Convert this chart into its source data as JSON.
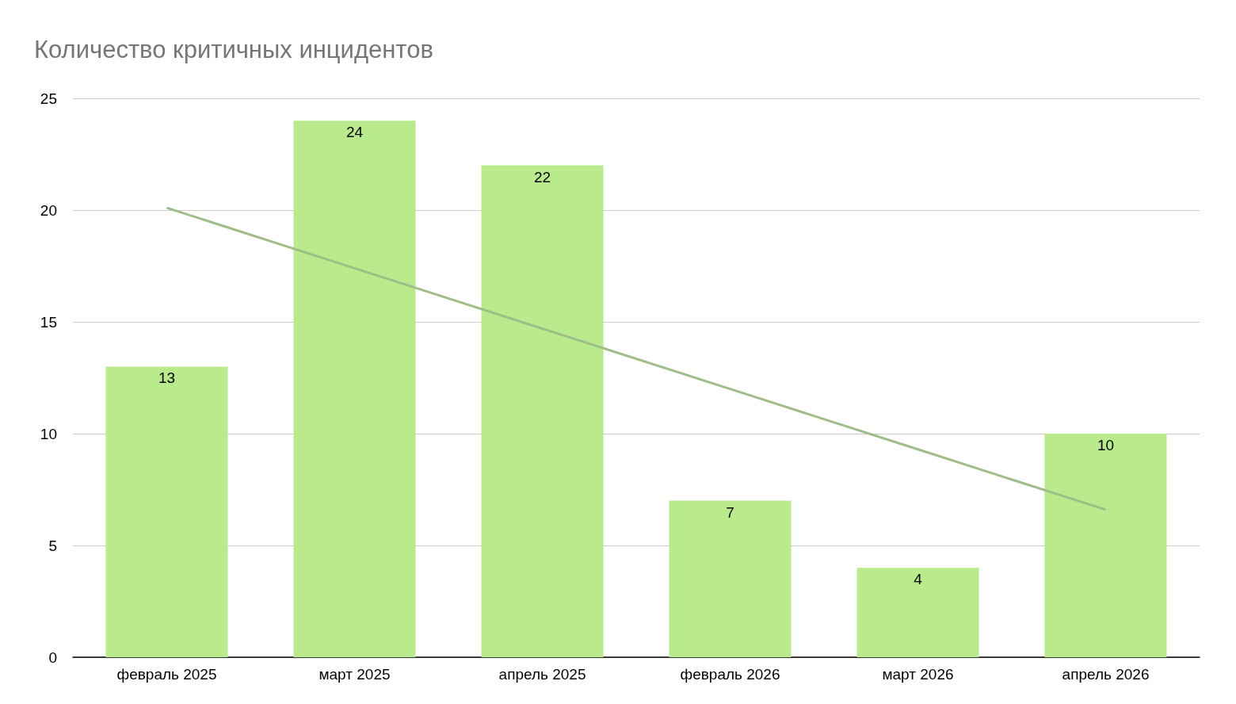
{
  "chart_data": {
    "type": "bar",
    "title": "Количество критичных инцидентов",
    "categories": [
      "февраль 2025",
      "март 2025",
      "апрель 2025",
      "февраль 2026",
      "март 2026",
      "апрель 2026"
    ],
    "series": [
      {
        "color": "#b9eb8c",
        "values": [
          13,
          24,
          22,
          7,
          4,
          10
        ],
        "value_labels": [
          "13",
          "24",
          "22",
          "7",
          "4",
          "10"
        ]
      },
      {
        "type": "line",
        "color": "#9fbd88",
        "values": [
          20.1,
          17.4,
          14.7,
          12.0,
          9.3,
          6.6
        ]
      }
    ],
    "ylim": [
      0,
      25
    ],
    "yticks": [
      0,
      5,
      10,
      15,
      20,
      25
    ],
    "grid": "y"
  }
}
